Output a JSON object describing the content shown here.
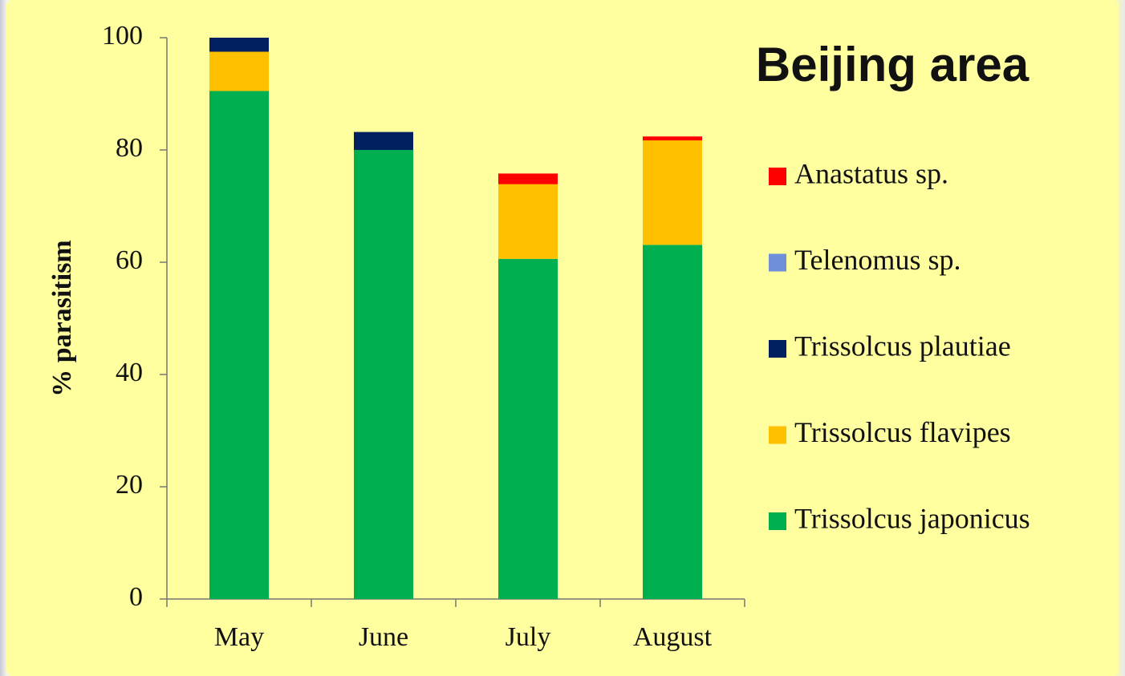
{
  "chart_data": {
    "type": "stacked_bar",
    "title": "Beijing area",
    "ylabel": "% parasitism",
    "categories": [
      "May",
      "June",
      "July",
      "August"
    ],
    "series": [
      {
        "name": "Trissolcus japonicus",
        "color": "#00b050",
        "values": [
          90.5,
          80,
          60.6,
          63.1
        ]
      },
      {
        "name": "Trissolcus flavipes",
        "color": "#ffc000",
        "values": [
          7,
          0,
          13.3,
          18.6
        ]
      },
      {
        "name": "Trissolcus plautiae",
        "color": "#002060",
        "values": [
          2.5,
          3.2,
          0,
          0
        ]
      },
      {
        "name": "Telenomus sp.",
        "color": "#6f8fd8",
        "values": [
          0,
          0,
          0,
          0
        ]
      },
      {
        "name": "Anastatus sp.",
        "color": "#ff0000",
        "values": [
          0,
          0,
          1.9,
          0.7
        ]
      }
    ],
    "ylim": [
      0,
      100
    ],
    "yticks": [
      0,
      20,
      40,
      60,
      80,
      100
    ]
  }
}
